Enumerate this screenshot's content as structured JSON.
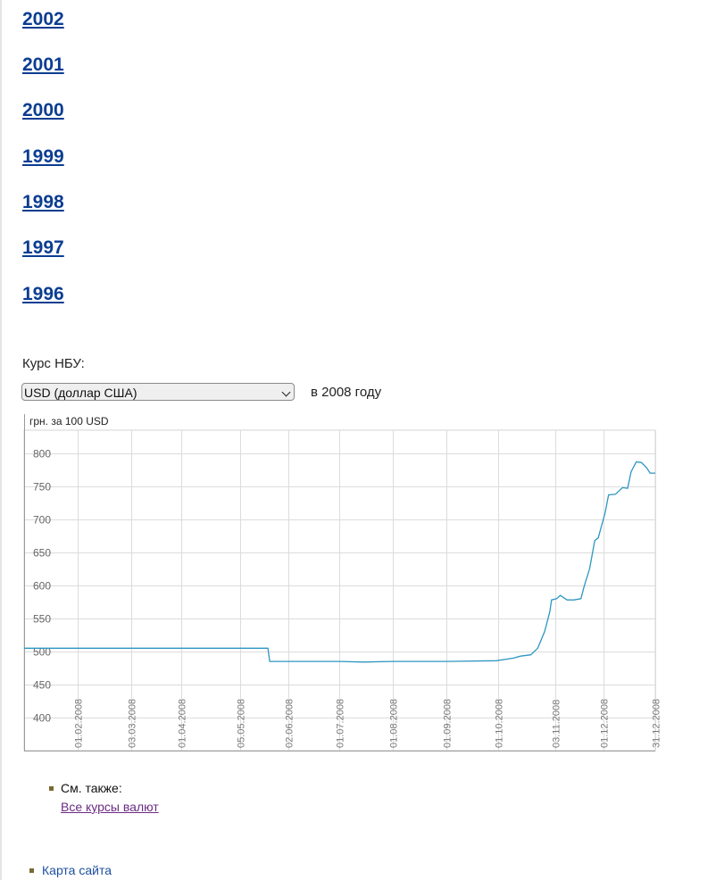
{
  "year_links": [
    "2002",
    "2001",
    "2000",
    "1999",
    "1998",
    "1997",
    "1996"
  ],
  "rate_label": "Курс НБУ:",
  "currency_select": {
    "selected": "USD (доллар США)"
  },
  "year_caption": "в 2008 году",
  "chart_data": {
    "type": "line",
    "ylabel": "грн. за 100 USD",
    "ylim": [
      350,
      835
    ],
    "yticks": [
      400,
      450,
      500,
      550,
      600,
      650,
      700,
      750,
      800
    ],
    "xlim": [
      "2008-01-01",
      "2008-12-31"
    ],
    "xticks": [
      "01.02.2008",
      "03.03.2008",
      "01.04.2008",
      "05.05.2008",
      "02.06.2008",
      "01.07.2008",
      "01.08.2008",
      "01.09.2008",
      "01.10.2008",
      "03.11.2008",
      "01.12.2008",
      "31.12.2008"
    ],
    "grid": true,
    "color": "#2e96c3",
    "series": [
      {
        "x": [
          "2008-01-01",
          "2008-05-21",
          "2008-05-22",
          "2008-06-15",
          "2008-07-01",
          "2008-07-15",
          "2008-08-01",
          "2008-09-01",
          "2008-09-30",
          "2008-10-10",
          "2008-10-14",
          "2008-10-20",
          "2008-10-24",
          "2008-10-28",
          "2008-10-31",
          "2008-11-01",
          "2008-11-04",
          "2008-11-06",
          "2008-11-10",
          "2008-11-14",
          "2008-11-18",
          "2008-11-20",
          "2008-11-23",
          "2008-11-26",
          "2008-11-28",
          "2008-12-02",
          "2008-12-04",
          "2008-12-08",
          "2008-12-12",
          "2008-12-15",
          "2008-12-17",
          "2008-12-20",
          "2008-12-23",
          "2008-12-26",
          "2008-12-28",
          "2008-12-31"
        ],
        "values": [
          505,
          505,
          485,
          485,
          485,
          484,
          485,
          485,
          486,
          490,
          493,
          495,
          505,
          530,
          560,
          578,
          580,
          585,
          578,
          578,
          580,
          600,
          625,
          668,
          672,
          710,
          737,
          738,
          748,
          747,
          772,
          787,
          786,
          778,
          770,
          770
        ]
      }
    ]
  },
  "see_also": {
    "label": "См. также:",
    "link": "Все курсы валют"
  },
  "sitemap_link": "Карта сайта"
}
